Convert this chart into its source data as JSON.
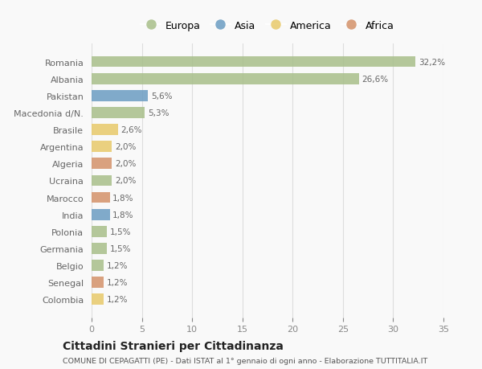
{
  "countries": [
    "Romania",
    "Albania",
    "Pakistan",
    "Macedonia d/N.",
    "Brasile",
    "Argentina",
    "Algeria",
    "Ucraina",
    "Marocco",
    "India",
    "Polonia",
    "Germania",
    "Belgio",
    "Senegal",
    "Colombia"
  ],
  "values": [
    32.2,
    26.6,
    5.6,
    5.3,
    2.6,
    2.0,
    2.0,
    2.0,
    1.8,
    1.8,
    1.5,
    1.5,
    1.2,
    1.2,
    1.2
  ],
  "labels": [
    "32,2%",
    "26,6%",
    "5,6%",
    "5,3%",
    "2,6%",
    "2,0%",
    "2,0%",
    "2,0%",
    "1,8%",
    "1,8%",
    "1,5%",
    "1,5%",
    "1,2%",
    "1,2%",
    "1,2%"
  ],
  "continents": [
    "Europa",
    "Europa",
    "Asia",
    "Europa",
    "America",
    "America",
    "Africa",
    "Europa",
    "Africa",
    "Asia",
    "Europa",
    "Europa",
    "Europa",
    "Africa",
    "America"
  ],
  "continent_colors": {
    "Europa": "#a8bf8a",
    "Asia": "#6b9dc2",
    "America": "#e8c96a",
    "Africa": "#d4926a"
  },
  "legend_order": [
    "Europa",
    "Asia",
    "America",
    "Africa"
  ],
  "xlim": [
    0,
    35
  ],
  "xticks": [
    0,
    5,
    10,
    15,
    20,
    25,
    30,
    35
  ],
  "title_main": "Cittadini Stranieri per Cittadinanza",
  "title_sub": "COMUNE DI CEPAGATTI (PE) - Dati ISTAT al 1° gennaio di ogni anno - Elaborazione TUTTITALIA.IT",
  "background_color": "#f9f9f9",
  "grid_color": "#dddddd"
}
